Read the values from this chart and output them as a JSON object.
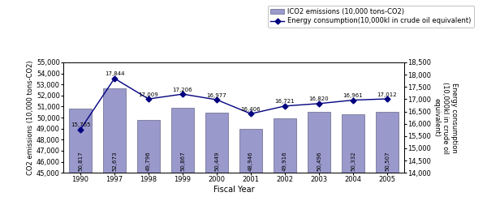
{
  "years": [
    "1990",
    "1997",
    "1998",
    "1999",
    "2000",
    "2001",
    "2002",
    "2003",
    "2004",
    "2005"
  ],
  "co2_values": [
    50817,
    52673,
    49796,
    50867,
    50449,
    48946,
    49916,
    50496,
    50332,
    50507
  ],
  "co2_labels": [
    "50,817",
    "52,673",
    "49,796",
    "50,867",
    "50,449",
    "48,946",
    "49,916",
    "50,496",
    "50,332",
    "50,507"
  ],
  "energy_values": [
    15765,
    17844,
    17009,
    17206,
    16977,
    16406,
    16721,
    16820,
    16961,
    17012
  ],
  "energy_labels": [
    "15,765",
    "17,844",
    "17,009",
    "17,206",
    "16,977",
    "16,406",
    "16,721",
    "16,820",
    "16,961",
    "17,012"
  ],
  "bar_color": "#9999cc",
  "bar_edge_color": "#666688",
  "line_color": "#000080",
  "co2_ylim": [
    45000,
    55000
  ],
  "energy_ylim": [
    14000,
    18500
  ],
  "co2_yticks": [
    45000,
    46000,
    47000,
    48000,
    49000,
    50000,
    51000,
    52000,
    53000,
    54000,
    55000
  ],
  "energy_yticks": [
    14000,
    14500,
    15000,
    15500,
    16000,
    16500,
    17000,
    17500,
    18000,
    18500
  ],
  "co2_ylabel": "CO2 emissions (10,000 tons-CO2)",
  "energy_ylabel": "Energy consumption\n(10,000kl in crude oil\nequivalent)",
  "xlabel": "Fiscal Year",
  "legend_bar_label": "lCO2 emissions (10,000 tons-CO2)",
  "legend_line_label": "Energy consumption(10,000kl in crude oil equivalent)"
}
